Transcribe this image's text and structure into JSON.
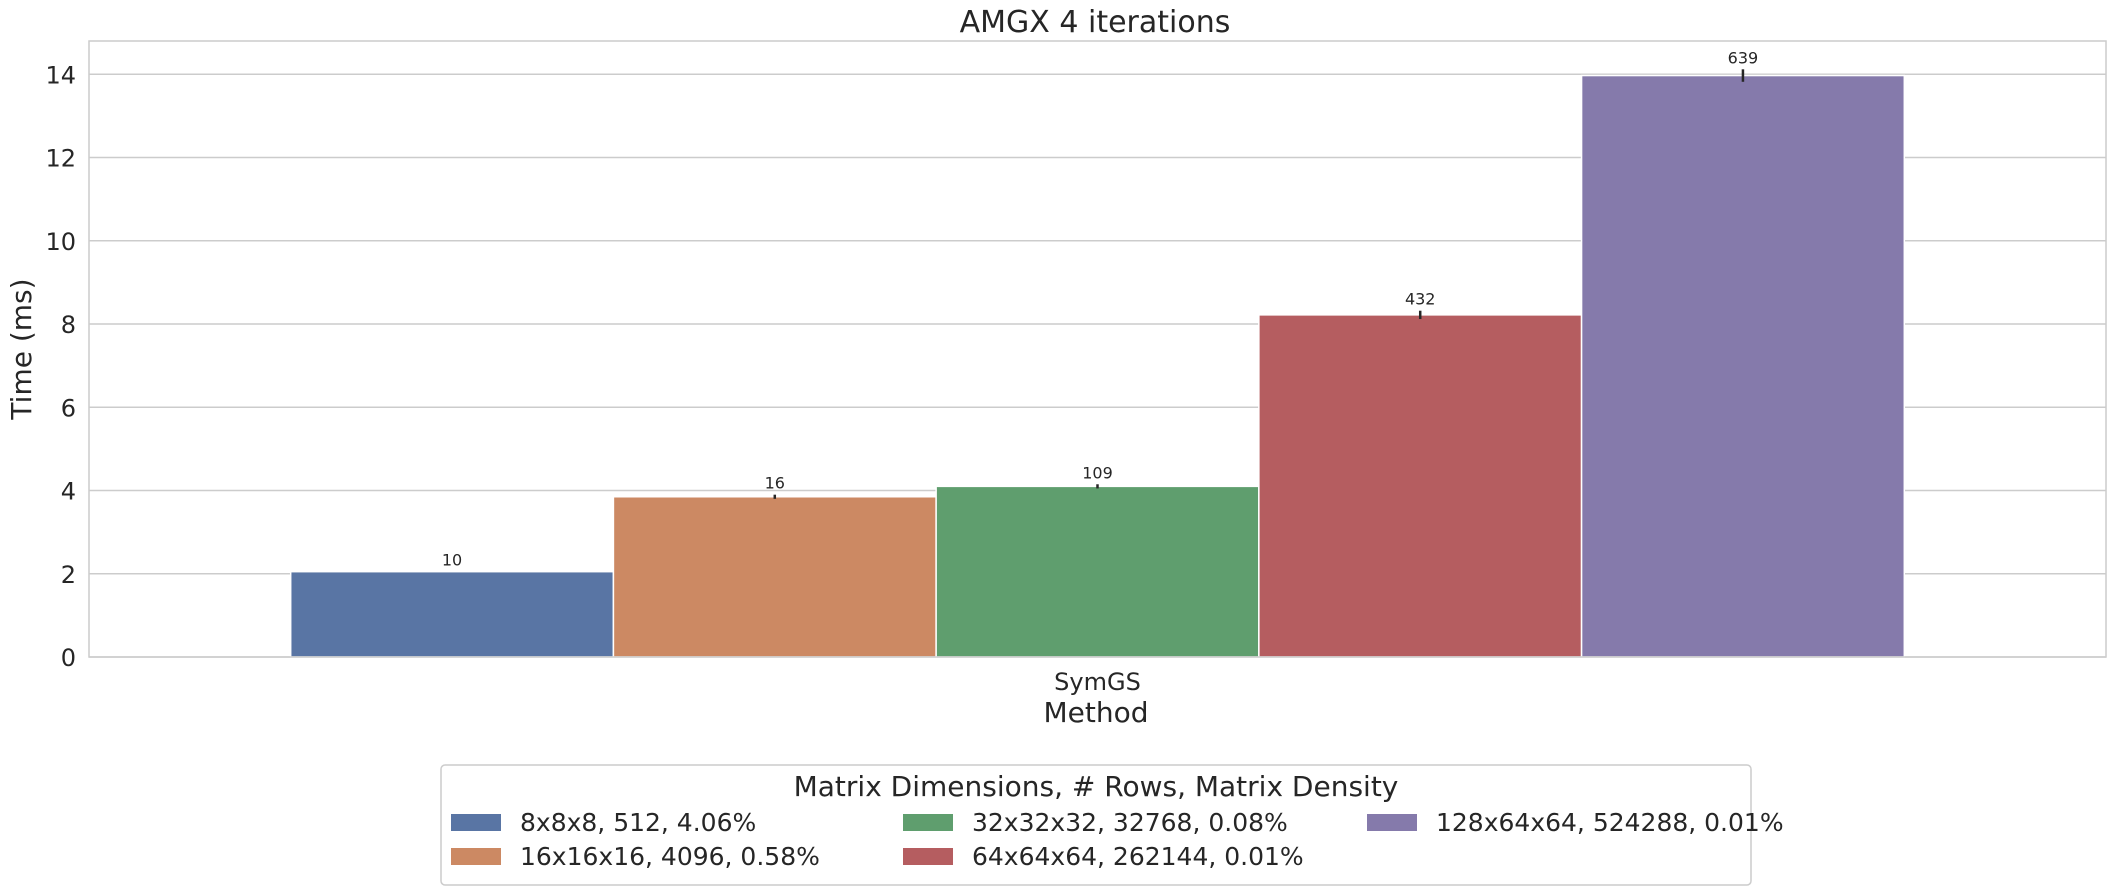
{
  "chart_data": {
    "type": "bar",
    "title": "AMGX 4 iterations",
    "xlabel": "Method",
    "ylabel": "Time (ms)",
    "categories": [
      "SymGS"
    ],
    "ylim": [
      0,
      14.8
    ],
    "yticks": [
      "0",
      "2",
      "4",
      "6",
      "8",
      "10",
      "12",
      "14"
    ],
    "grid": true,
    "legend": {
      "title": "Matrix Dimensions, # Rows, Matrix Density",
      "placement": "bottom-center"
    },
    "series": [
      {
        "name": "8x8x8, 512, 4.06%",
        "values": [
          2.05
        ],
        "error": [
          0.0
        ],
        "bar_label": "10",
        "color": "#5975a4"
      },
      {
        "name": "16x16x16, 4096, 0.58%",
        "values": [
          3.85
        ],
        "error": [
          0.05
        ],
        "bar_label": "16",
        "color": "#cc8963"
      },
      {
        "name": "32x32x32, 32768, 0.08%",
        "values": [
          4.1
        ],
        "error": [
          0.05
        ],
        "bar_label": "109",
        "color": "#5f9e6e"
      },
      {
        "name": "64x64x64, 262144, 0.01%",
        "values": [
          8.22
        ],
        "error": [
          0.1
        ],
        "bar_label": "432",
        "color": "#b55d60"
      },
      {
        "name": "128x64x64, 524288, 0.01%",
        "values": [
          13.97
        ],
        "error": [
          0.15
        ],
        "bar_label": "639",
        "color": "#857aab"
      }
    ]
  }
}
